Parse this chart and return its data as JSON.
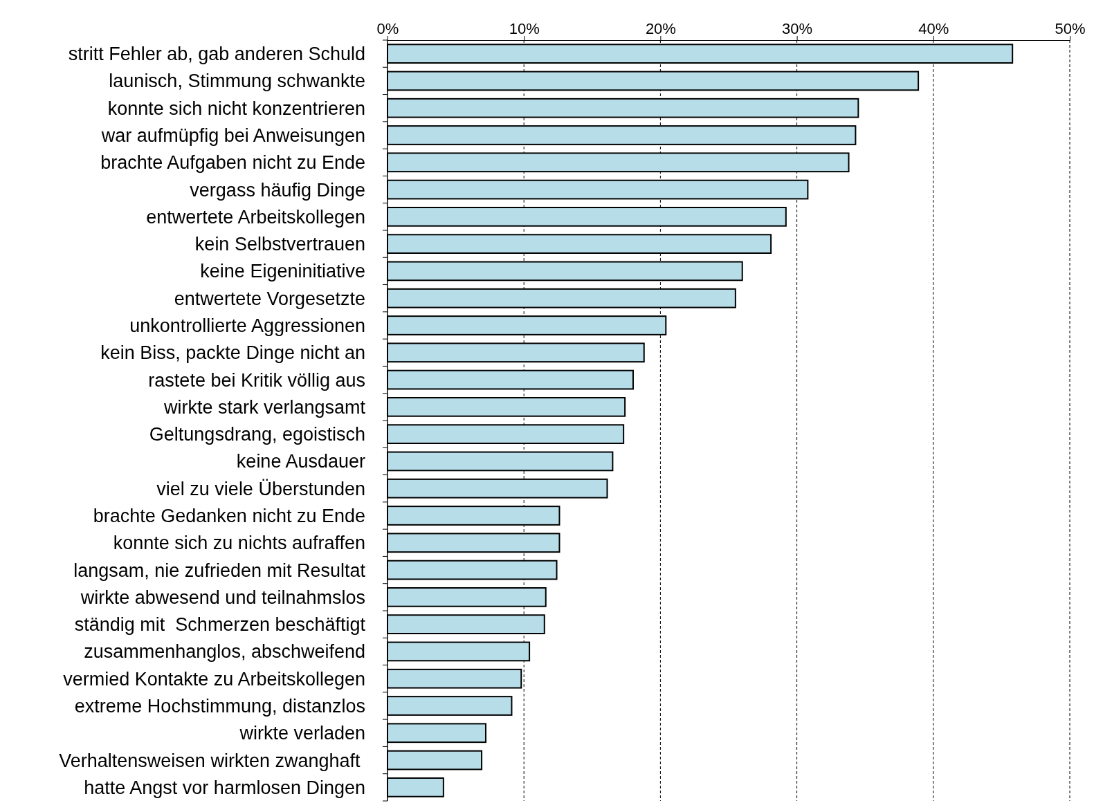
{
  "chart_data": {
    "type": "bar",
    "orientation": "horizontal",
    "categories": [
      "stritt Fehler ab, gab anderen Schuld",
      "launisch, Stimmung schwankte",
      "konnte sich nicht konzentrieren",
      "war aufmüpfig bei Anweisungen",
      "brachte Aufgaben nicht zu Ende",
      "vergass häufig Dinge",
      "entwertete Arbeitskollegen",
      "kein Selbstvertrauen",
      "keine Eigeninitiative",
      "entwertete Vorgesetzte",
      "unkontrollierte Aggressionen",
      "kein Biss, packte Dinge nicht an",
      "rastete bei Kritik völlig aus",
      "wirkte stark verlangsamt",
      "Geltungsdrang, egoistisch",
      "keine Ausdauer",
      "viel zu viele Überstunden",
      "brachte Gedanken nicht zu Ende",
      "konnte sich zu nichts aufraffen",
      "langsam, nie zufrieden mit Resultat",
      "wirkte abwesend und teilnahmslos",
      "ständig mit  Schmerzen beschäftigt",
      "zusammenhanglos, abschweifend",
      "vermied Kontakte zu Arbeitskollegen",
      "extreme Hochstimmung, distanzlos",
      "wirkte verladen",
      "Verhaltensweisen wirkten zwanghaft ",
      "hatte Angst vor harmlosen Dingen"
    ],
    "values": [
      45.8,
      38.9,
      34.5,
      34.3,
      33.8,
      30.8,
      29.2,
      28.1,
      26.0,
      25.5,
      20.4,
      18.8,
      18.0,
      17.4,
      17.3,
      16.5,
      16.1,
      12.6,
      12.6,
      12.4,
      11.6,
      11.5,
      10.4,
      9.8,
      9.1,
      7.2,
      6.9,
      4.1
    ],
    "color": "#b7dde8",
    "xlim": [
      0,
      50
    ],
    "xticks": [
      {
        "value": 0,
        "label": "0%"
      },
      {
        "value": 10,
        "label": "10%"
      },
      {
        "value": 20,
        "label": "20%"
      },
      {
        "value": 30,
        "label": "30%"
      },
      {
        "value": 40,
        "label": "40%"
      },
      {
        "value": 50,
        "label": "50%"
      }
    ],
    "grid": "x"
  }
}
